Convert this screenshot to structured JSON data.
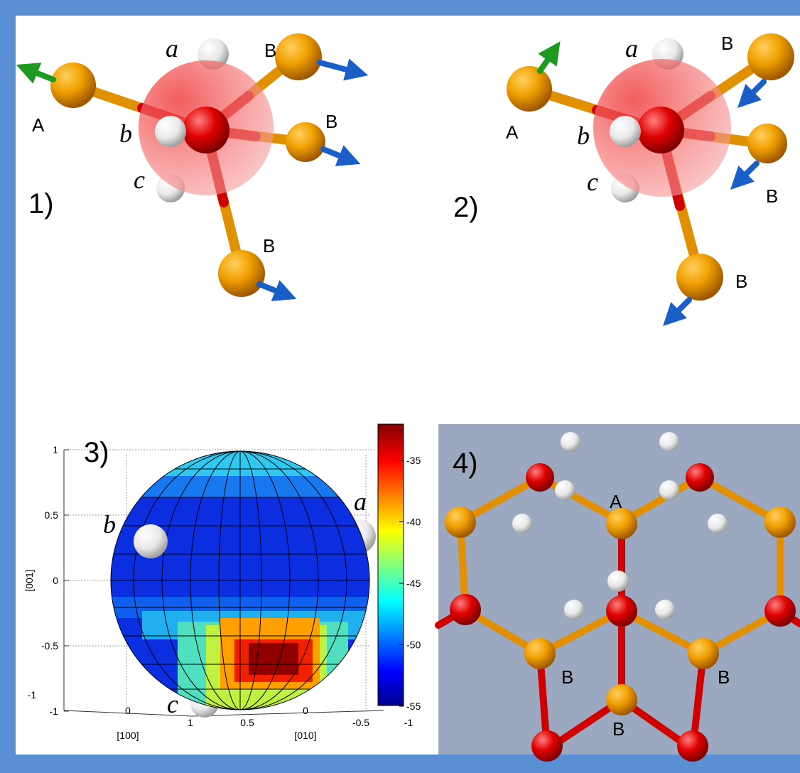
{
  "panels": [
    {
      "label": "1)",
      "atom_labels": [
        "A",
        "a",
        "b",
        "c",
        "B",
        "B",
        "B"
      ]
    },
    {
      "label": "2)",
      "atom_labels": [
        "A",
        "a",
        "b",
        "c",
        "B",
        "B",
        "B"
      ]
    },
    {
      "label": "3)",
      "y_axis_label": "[001]",
      "y_ticks": [
        "1",
        "0.5",
        "0",
        "-0.5",
        "-1"
      ],
      "x_ticks": [
        "-1",
        "0",
        "1",
        "0.5",
        "0",
        "-0.5",
        "-1"
      ],
      "x_axis_labels": [
        "[100]",
        "[010]"
      ],
      "colorbar_ticks": [
        "-35",
        "-40",
        "-45",
        "-50",
        "-55"
      ],
      "atom_labels": [
        "a",
        "b",
        "c"
      ]
    },
    {
      "label": "4)",
      "atom_labels": [
        "A",
        "B",
        "B",
        "B"
      ]
    }
  ]
}
